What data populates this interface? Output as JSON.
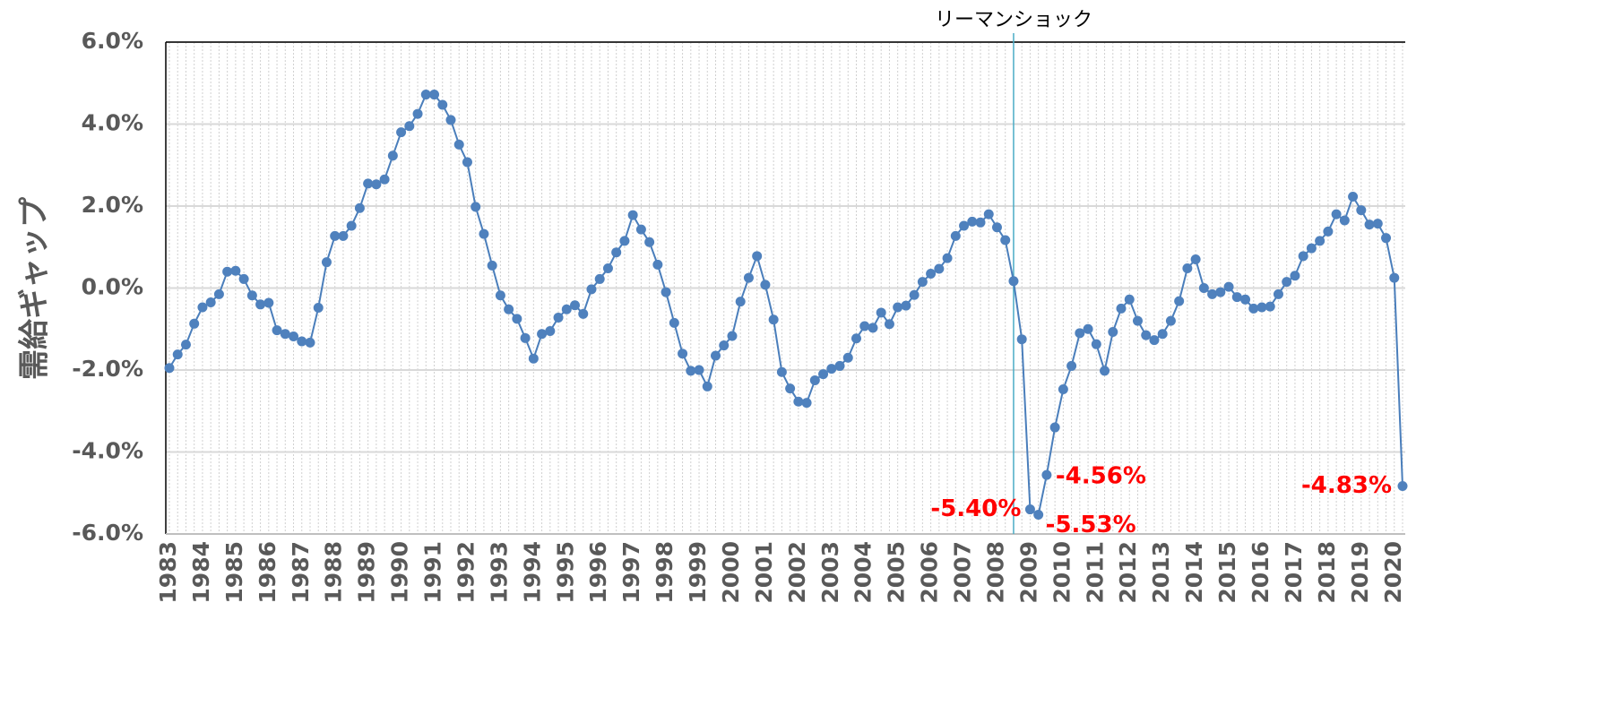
{
  "chart_data": {
    "type": "line",
    "y_label": "需給ギャップ",
    "annotation": "リーマンショック",
    "categories": [
      "1983",
      null,
      null,
      null,
      "1984",
      null,
      null,
      null,
      "1985",
      null,
      null,
      null,
      "1986",
      null,
      null,
      null,
      "1987",
      null,
      null,
      null,
      "1988",
      null,
      null,
      null,
      "1989",
      null,
      null,
      null,
      "1990",
      null,
      null,
      null,
      "1991",
      null,
      null,
      null,
      "1992",
      null,
      null,
      null,
      "1993",
      null,
      null,
      null,
      "1994",
      null,
      null,
      null,
      "1995",
      null,
      null,
      null,
      "1996",
      null,
      null,
      null,
      "1997",
      null,
      null,
      null,
      "1998",
      null,
      null,
      null,
      "1999",
      null,
      null,
      null,
      "2000",
      null,
      null,
      null,
      "2001",
      null,
      null,
      null,
      "2002",
      null,
      null,
      null,
      "2003",
      null,
      null,
      null,
      "2004",
      null,
      null,
      null,
      "2005",
      null,
      null,
      null,
      "2006",
      null,
      null,
      null,
      "2007",
      null,
      null,
      null,
      "2008",
      null,
      null,
      null,
      "2009",
      null,
      null,
      null,
      "2010",
      null,
      null,
      null,
      "2011",
      null,
      null,
      null,
      "2012",
      null,
      null,
      null,
      "2013",
      null,
      null,
      null,
      "2014",
      null,
      null,
      null,
      "2015",
      null,
      null,
      null,
      "2016",
      null,
      null,
      null,
      "2017",
      null,
      null,
      null,
      "2018",
      null,
      null,
      null,
      "2019",
      null,
      null,
      null,
      "2020",
      null
    ],
    "series": [
      {
        "color": "#4a7ebb",
        "values": [
          -1.95,
          -1.62,
          -1.38,
          -0.87,
          -0.47,
          -0.35,
          -0.15,
          0.4,
          0.42,
          0.22,
          -0.18,
          -0.4,
          -0.36,
          -1.03,
          -1.12,
          -1.18,
          -1.3,
          -1.33,
          -0.48,
          0.63,
          1.27,
          1.27,
          1.52,
          1.95,
          2.55,
          2.53,
          2.65,
          3.23,
          3.8,
          3.95,
          4.25,
          4.72,
          4.72,
          4.47,
          4.1,
          3.5,
          3.07,
          1.98,
          1.32,
          0.55,
          -0.18,
          -0.52,
          -0.75,
          -1.22,
          -1.72,
          -1.12,
          -1.05,
          -0.72,
          -0.52,
          -0.42,
          -0.63,
          -0.03,
          0.22,
          0.48,
          0.87,
          1.15,
          1.78,
          1.43,
          1.12,
          0.57,
          -0.1,
          -0.85,
          -1.6,
          -2.02,
          -2.0,
          -2.4,
          -1.65,
          -1.4,
          -1.17,
          -0.33,
          0.25,
          0.78,
          0.08,
          -0.77,
          -2.05,
          -2.45,
          -2.77,
          -2.8,
          -2.25,
          -2.1,
          -1.97,
          -1.9,
          -1.7,
          -1.23,
          -0.93,
          -0.97,
          -0.6,
          -0.88,
          -0.47,
          -0.43,
          -0.17,
          0.15,
          0.35,
          0.47,
          0.73,
          1.27,
          1.52,
          1.62,
          1.6,
          1.8,
          1.48,
          1.17,
          0.17,
          -1.25,
          -5.4,
          -5.53,
          -4.56,
          -3.4,
          -2.47,
          -1.9,
          -1.1,
          -1.0,
          -1.37,
          -2.02,
          -1.07,
          -0.5,
          -0.28,
          -0.8,
          -1.15,
          -1.27,
          -1.12,
          -0.8,
          -0.32,
          0.48,
          0.7,
          0.0,
          -0.15,
          -0.1,
          0.03,
          -0.22,
          -0.28,
          -0.5,
          -0.47,
          -0.45,
          -0.15,
          0.15,
          0.3,
          0.78,
          0.97,
          1.15,
          1.38,
          1.8,
          1.65,
          2.23,
          1.9,
          1.55,
          1.57,
          1.22,
          0.25,
          -4.83
        ],
        "value_labels": {
          "104": "-5.40%",
          "105": "-5.53%",
          "106": "-4.56%",
          "149": "-4.83%"
        },
        "value_label_color": "#ff0000"
      }
    ],
    "ylim": [
      -6,
      6
    ],
    "yticks": [
      {
        "value": -6,
        "label": "-6.0%"
      },
      {
        "value": -4,
        "label": "-4.0%"
      },
      {
        "value": -2,
        "label": "-2.0%"
      },
      {
        "value": 0,
        "label": "0.0%"
      },
      {
        "value": 2,
        "label": "2.0%"
      },
      {
        "value": 4,
        "label": "4.0%"
      },
      {
        "value": 6,
        "label": "6.0%"
      }
    ],
    "grid": true
  }
}
